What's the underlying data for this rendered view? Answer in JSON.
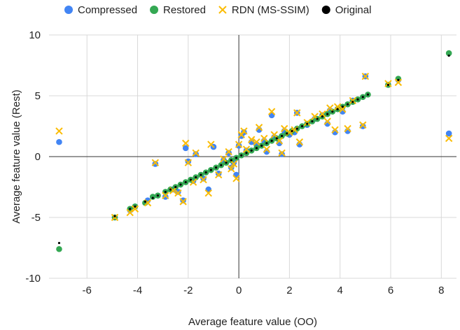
{
  "chart_data": {
    "type": "scatter",
    "xlabel": "Average feature value (OO)",
    "ylabel": "Average feature value (Rest)",
    "xlim": [
      -7.5,
      8.6
    ],
    "ylim": [
      -10,
      10
    ],
    "x_ticks": [
      -6,
      -4,
      -2,
      0,
      2,
      4,
      6,
      8
    ],
    "y_ticks": [
      -10,
      -5,
      0,
      5,
      10
    ],
    "grid": true,
    "legend_position": "top",
    "series": [
      {
        "name": "Compressed",
        "color": "#4285f4",
        "marker": "circle",
        "points": [
          [
            -7.1,
            1.2
          ],
          [
            8.3,
            1.9
          ],
          [
            -4.9,
            -5.0
          ],
          [
            -4.3,
            -4.4
          ],
          [
            -4.1,
            -4.1
          ],
          [
            -3.6,
            -3.6
          ],
          [
            -3.3,
            -0.6
          ],
          [
            -2.9,
            -3.3
          ],
          [
            -2.6,
            -2.7
          ],
          [
            -2.4,
            -2.9
          ],
          [
            -2.2,
            -3.6
          ],
          [
            -2.1,
            0.7
          ],
          [
            -2.0,
            -0.4
          ],
          [
            -1.8,
            -2.0
          ],
          [
            -1.7,
            0.2
          ],
          [
            -1.4,
            -1.8
          ],
          [
            -1.2,
            -2.7
          ],
          [
            -1.0,
            0.8
          ],
          [
            -0.8,
            -1.4
          ],
          [
            -0.6,
            -0.3
          ],
          [
            -0.4,
            0.3
          ],
          [
            -0.3,
            -0.9
          ],
          [
            -0.2,
            -0.5
          ],
          [
            -0.1,
            -1.5
          ],
          [
            0.0,
            0.9
          ],
          [
            0.1,
            1.7
          ],
          [
            0.2,
            2.0
          ],
          [
            0.3,
            0.5
          ],
          [
            0.5,
            1.2
          ],
          [
            0.7,
            1.0
          ],
          [
            0.8,
            2.2
          ],
          [
            1.0,
            1.3
          ],
          [
            1.1,
            0.4
          ],
          [
            1.3,
            3.4
          ],
          [
            1.4,
            1.6
          ],
          [
            1.6,
            1.1
          ],
          [
            1.7,
            0.2
          ],
          [
            1.8,
            2.1
          ],
          [
            2.0,
            1.8
          ],
          [
            2.2,
            2.0
          ],
          [
            2.3,
            3.6
          ],
          [
            2.4,
            1.0
          ],
          [
            2.7,
            2.6
          ],
          [
            3.0,
            3.1
          ],
          [
            3.3,
            3.4
          ],
          [
            3.5,
            2.7
          ],
          [
            3.6,
            3.8
          ],
          [
            3.8,
            2.0
          ],
          [
            3.9,
            3.9
          ],
          [
            4.1,
            3.7
          ],
          [
            4.3,
            2.1
          ],
          [
            4.5,
            4.6
          ],
          [
            4.9,
            2.5
          ],
          [
            5.0,
            6.6
          ],
          [
            5.9,
            5.9
          ],
          [
            6.3,
            6.3
          ]
        ]
      },
      {
        "name": "Restored",
        "color": "#34a853",
        "marker": "circle",
        "points": [
          [
            -7.1,
            -7.6
          ],
          [
            8.3,
            8.5
          ],
          [
            -4.9,
            -5.0
          ],
          [
            -4.3,
            -4.3
          ],
          [
            -4.1,
            -4.1
          ],
          [
            -3.7,
            -3.8
          ],
          [
            -3.4,
            -3.3
          ],
          [
            -3.2,
            -3.2
          ],
          [
            -2.9,
            -2.9
          ],
          [
            -2.7,
            -2.7
          ],
          [
            -2.5,
            -2.5
          ],
          [
            -2.3,
            -2.3
          ],
          [
            -2.1,
            -2.1
          ],
          [
            -1.9,
            -1.9
          ],
          [
            -1.7,
            -1.7
          ],
          [
            -1.5,
            -1.5
          ],
          [
            -1.3,
            -1.3
          ],
          [
            -1.1,
            -1.1
          ],
          [
            -0.9,
            -0.9
          ],
          [
            -0.7,
            -0.7
          ],
          [
            -0.5,
            -0.5
          ],
          [
            -0.3,
            -0.3
          ],
          [
            -0.1,
            -0.1
          ],
          [
            0.1,
            0.1
          ],
          [
            0.3,
            0.3
          ],
          [
            0.5,
            0.5
          ],
          [
            0.7,
            0.7
          ],
          [
            0.9,
            0.9
          ],
          [
            1.1,
            1.1
          ],
          [
            1.3,
            1.3
          ],
          [
            1.5,
            1.5
          ],
          [
            1.7,
            1.7
          ],
          [
            1.9,
            1.9
          ],
          [
            2.1,
            2.1
          ],
          [
            2.3,
            2.3
          ],
          [
            2.5,
            2.5
          ],
          [
            2.7,
            2.7
          ],
          [
            2.9,
            2.9
          ],
          [
            3.1,
            3.1
          ],
          [
            3.3,
            3.3
          ],
          [
            3.5,
            3.5
          ],
          [
            3.7,
            3.7
          ],
          [
            3.9,
            3.9
          ],
          [
            4.1,
            4.1
          ],
          [
            4.3,
            4.3
          ],
          [
            4.5,
            4.5
          ],
          [
            4.7,
            4.7
          ],
          [
            4.9,
            4.9
          ],
          [
            5.1,
            5.1
          ],
          [
            5.9,
            5.9
          ],
          [
            6.3,
            6.4
          ]
        ]
      },
      {
        "name": "RDN (MS-SSIM)",
        "color": "#fbbc04",
        "marker": "x",
        "points": [
          [
            -7.1,
            2.1
          ],
          [
            8.3,
            1.5
          ],
          [
            -4.9,
            -5.0
          ],
          [
            -4.3,
            -4.6
          ],
          [
            -4.1,
            -4.3
          ],
          [
            -3.6,
            -3.8
          ],
          [
            -3.3,
            -0.5
          ],
          [
            -2.9,
            -3.2
          ],
          [
            -2.6,
            -2.8
          ],
          [
            -2.4,
            -3.0
          ],
          [
            -2.2,
            -3.7
          ],
          [
            -2.1,
            1.1
          ],
          [
            -2.0,
            -0.5
          ],
          [
            -1.8,
            -2.1
          ],
          [
            -1.7,
            0.3
          ],
          [
            -1.4,
            -1.9
          ],
          [
            -1.2,
            -3.0
          ],
          [
            -1.1,
            1.0
          ],
          [
            -0.8,
            -1.5
          ],
          [
            -0.6,
            -0.2
          ],
          [
            -0.4,
            0.4
          ],
          [
            -0.3,
            -1.0
          ],
          [
            -0.2,
            -0.6
          ],
          [
            -0.1,
            -1.8
          ],
          [
            0.0,
            1.0
          ],
          [
            0.1,
            1.8
          ],
          [
            0.2,
            2.1
          ],
          [
            0.3,
            0.6
          ],
          [
            0.5,
            1.4
          ],
          [
            0.7,
            1.2
          ],
          [
            0.8,
            2.4
          ],
          [
            1.0,
            1.5
          ],
          [
            1.1,
            0.6
          ],
          [
            1.3,
            3.7
          ],
          [
            1.4,
            1.8
          ],
          [
            1.6,
            1.3
          ],
          [
            1.7,
            0.3
          ],
          [
            1.8,
            2.3
          ],
          [
            2.0,
            2.0
          ],
          [
            2.2,
            2.2
          ],
          [
            2.3,
            3.6
          ],
          [
            2.4,
            1.2
          ],
          [
            2.7,
            2.8
          ],
          [
            3.0,
            3.3
          ],
          [
            3.3,
            3.5
          ],
          [
            3.5,
            2.9
          ],
          [
            3.6,
            4.0
          ],
          [
            3.8,
            2.2
          ],
          [
            3.9,
            4.1
          ],
          [
            4.1,
            3.9
          ],
          [
            4.3,
            2.3
          ],
          [
            4.5,
            4.6
          ],
          [
            4.9,
            2.6
          ],
          [
            5.0,
            6.6
          ],
          [
            5.9,
            6.0
          ],
          [
            6.3,
            6.1
          ]
        ]
      },
      {
        "name": "Original",
        "color": "#000000",
        "marker": "circle",
        "points": [
          [
            -7.1,
            -7.1
          ],
          [
            8.3,
            8.3
          ],
          [
            -4.9,
            -4.9
          ],
          [
            -4.3,
            -4.3
          ],
          [
            -4.1,
            -4.1
          ],
          [
            -3.7,
            -3.7
          ],
          [
            -3.4,
            -3.4
          ],
          [
            -3.2,
            -3.2
          ],
          [
            -2.9,
            -2.9
          ],
          [
            -2.7,
            -2.7
          ],
          [
            -2.5,
            -2.5
          ],
          [
            -2.3,
            -2.3
          ],
          [
            -2.1,
            -2.1
          ],
          [
            -1.9,
            -1.9
          ],
          [
            -1.7,
            -1.7
          ],
          [
            -1.5,
            -1.5
          ],
          [
            -1.3,
            -1.3
          ],
          [
            -1.1,
            -1.1
          ],
          [
            -0.9,
            -0.9
          ],
          [
            -0.7,
            -0.7
          ],
          [
            -0.5,
            -0.5
          ],
          [
            -0.3,
            -0.3
          ],
          [
            -0.1,
            -0.1
          ],
          [
            0.1,
            0.1
          ],
          [
            0.3,
            0.3
          ],
          [
            0.5,
            0.5
          ],
          [
            0.7,
            0.7
          ],
          [
            0.9,
            0.9
          ],
          [
            1.1,
            1.1
          ],
          [
            1.3,
            1.3
          ],
          [
            1.5,
            1.5
          ],
          [
            1.7,
            1.7
          ],
          [
            1.9,
            1.9
          ],
          [
            2.1,
            2.1
          ],
          [
            2.3,
            2.3
          ],
          [
            2.5,
            2.5
          ],
          [
            2.7,
            2.7
          ],
          [
            2.9,
            2.9
          ],
          [
            3.1,
            3.1
          ],
          [
            3.3,
            3.3
          ],
          [
            3.5,
            3.5
          ],
          [
            3.7,
            3.7
          ],
          [
            3.9,
            3.9
          ],
          [
            4.1,
            4.1
          ],
          [
            4.3,
            4.3
          ],
          [
            4.5,
            4.5
          ],
          [
            4.7,
            4.7
          ],
          [
            4.9,
            4.9
          ],
          [
            5.1,
            5.1
          ],
          [
            5.9,
            5.9
          ],
          [
            6.3,
            6.3
          ]
        ]
      }
    ]
  }
}
